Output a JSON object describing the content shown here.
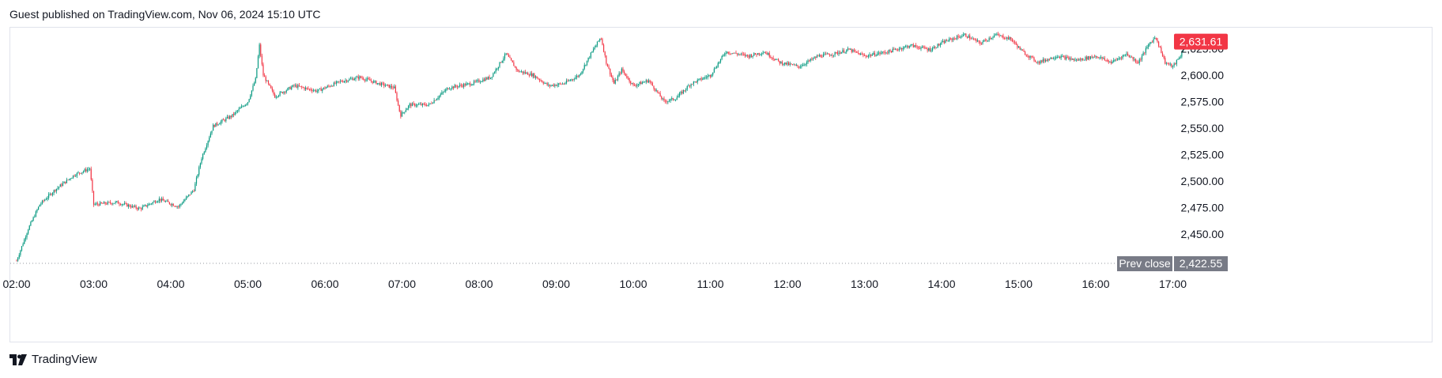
{
  "header": {
    "published_text": "Guest published on TradingView.com, Nov 06, 2024 15:10 UTC"
  },
  "footer": {
    "brand": "TradingView"
  },
  "colors": {
    "up": "#089981",
    "down": "#f23645",
    "last_price_bg": "#f23645",
    "prev_close_bg": "#787b86",
    "grid_dots": "#9598a1"
  },
  "chart_data": {
    "type": "candlestick",
    "x_ticks": [
      "02:00",
      "03:00",
      "04:00",
      "05:00",
      "06:00",
      "07:00",
      "08:00",
      "09:00",
      "10:00",
      "11:00",
      "12:00",
      "13:00",
      "14:00",
      "15:00",
      "16:00",
      "17:00"
    ],
    "y_ticks": [
      "2,450.00",
      "2,475.00",
      "2,500.00",
      "2,525.00",
      "2,550.00",
      "2,575.00",
      "2,600.00",
      "2,625.00"
    ],
    "ylim": [
      2422.55,
      2641
    ],
    "last_price": {
      "label": "2,631.61",
      "value": 2631.61
    },
    "prev_close": {
      "label": "Prev close",
      "value_label": "2,422.55",
      "value": 2422.55
    },
    "close_path": [
      [
        0,
        2425
      ],
      [
        0.15,
        2455
      ],
      [
        0.3,
        2478
      ],
      [
        0.5,
        2492
      ],
      [
        0.75,
        2506
      ],
      [
        0.95,
        2512
      ],
      [
        1.0,
        2478
      ],
      [
        1.3,
        2480
      ],
      [
        1.6,
        2474
      ],
      [
        1.85,
        2483
      ],
      [
        2.1,
        2476
      ],
      [
        2.3,
        2492
      ],
      [
        2.4,
        2522
      ],
      [
        2.55,
        2552
      ],
      [
        2.8,
        2562
      ],
      [
        3.0,
        2575
      ],
      [
        3.1,
        2596
      ],
      [
        3.15,
        2628
      ],
      [
        3.2,
        2600
      ],
      [
        3.35,
        2580
      ],
      [
        3.6,
        2590
      ],
      [
        3.9,
        2585
      ],
      [
        4.2,
        2594
      ],
      [
        4.45,
        2598
      ],
      [
        4.7,
        2592
      ],
      [
        4.9,
        2588
      ],
      [
        4.98,
        2562
      ],
      [
        5.1,
        2572
      ],
      [
        5.35,
        2572
      ],
      [
        5.6,
        2588
      ],
      [
        5.9,
        2592
      ],
      [
        6.15,
        2598
      ],
      [
        6.35,
        2620
      ],
      [
        6.5,
        2604
      ],
      [
        6.7,
        2600
      ],
      [
        6.9,
        2590
      ],
      [
        7.1,
        2592
      ],
      [
        7.3,
        2600
      ],
      [
        7.45,
        2620
      ],
      [
        7.58,
        2636
      ],
      [
        7.65,
        2612
      ],
      [
        7.75,
        2592
      ],
      [
        7.85,
        2605
      ],
      [
        8.0,
        2590
      ],
      [
        8.2,
        2595
      ],
      [
        8.4,
        2575
      ],
      [
        8.55,
        2578
      ],
      [
        8.75,
        2592
      ],
      [
        9.0,
        2600
      ],
      [
        9.2,
        2622
      ],
      [
        9.5,
        2618
      ],
      [
        9.7,
        2622
      ],
      [
        9.9,
        2612
      ],
      [
        10.15,
        2608
      ],
      [
        10.4,
        2618
      ],
      [
        10.6,
        2620
      ],
      [
        10.8,
        2624
      ],
      [
        11.0,
        2618
      ],
      [
        11.3,
        2622
      ],
      [
        11.6,
        2628
      ],
      [
        11.85,
        2624
      ],
      [
        12.05,
        2632
      ],
      [
        12.3,
        2638
      ],
      [
        12.5,
        2630
      ],
      [
        12.7,
        2638
      ],
      [
        12.9,
        2634
      ],
      [
        13.05,
        2622
      ],
      [
        13.25,
        2612
      ],
      [
        13.5,
        2618
      ],
      [
        13.75,
        2614
      ],
      [
        14.0,
        2618
      ],
      [
        14.2,
        2612
      ],
      [
        14.4,
        2620
      ],
      [
        14.55,
        2612
      ],
      [
        14.7,
        2630
      ],
      [
        14.78,
        2636
      ],
      [
        14.9,
        2612
      ],
      [
        15.0,
        2608
      ],
      [
        15.1,
        2618
      ],
      [
        15.15,
        2631.61
      ]
    ]
  }
}
